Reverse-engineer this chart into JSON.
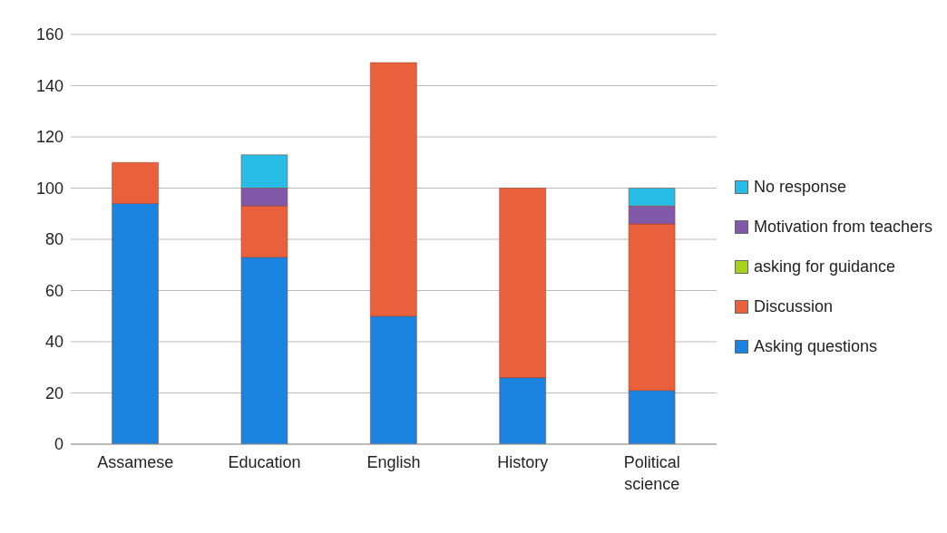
{
  "chart_data": {
    "type": "bar",
    "stacked": true,
    "categories": [
      "Assamese",
      "Education",
      "English",
      "History",
      "Political science"
    ],
    "series": [
      {
        "name": "Asking questions",
        "color": "#1a84e0",
        "values": [
          94,
          73,
          50,
          26,
          21
        ]
      },
      {
        "name": "Discussion",
        "color": "#e8603c",
        "values": [
          16,
          20,
          99,
          74,
          65
        ]
      },
      {
        "name": "asking for guidance",
        "color": "#a6d21e",
        "values": [
          0,
          0,
          0,
          0,
          0
        ]
      },
      {
        "name": "Motivation from teachers",
        "color": "#8059a8",
        "values": [
          0,
          7,
          0,
          0,
          7
        ]
      },
      {
        "name": "No response",
        "color": "#27bde6",
        "values": [
          0,
          13,
          0,
          0,
          7
        ]
      }
    ],
    "ylim": [
      0,
      160
    ],
    "yticks": [
      0,
      20,
      40,
      60,
      80,
      100,
      120,
      140,
      160
    ],
    "grid": "y",
    "legend": "right"
  }
}
